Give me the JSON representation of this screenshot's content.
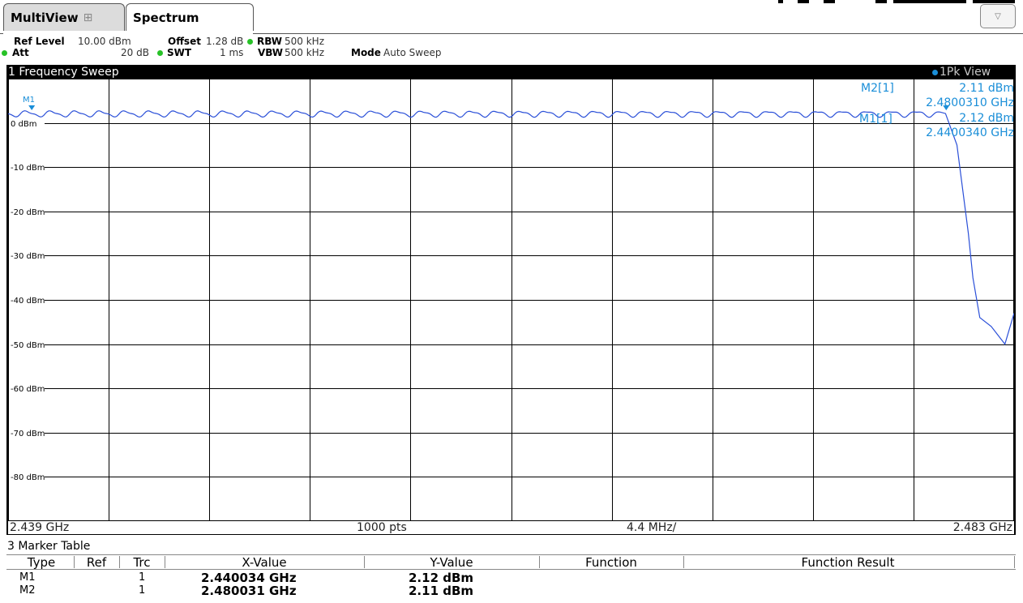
{
  "tabs": {
    "multiview_label": "MultiView",
    "multiview_icon": "grid-icon",
    "spectrum_label": "Spectrum",
    "dropdown_icon": "dropdown-arrow-icon"
  },
  "settings": {
    "ref_level_label": "Ref Level",
    "ref_level_value": "10.00 dBm",
    "offset_label": "Offset",
    "offset_value": "1.28 dB",
    "rbw_label": "RBW",
    "rbw_value": "500 kHz",
    "att_label": "Att",
    "att_value": "20 dB",
    "swt_label": "SWT",
    "swt_value": "1 ms",
    "vbw_label": "VBW",
    "vbw_value": "500 kHz",
    "mode_label": "Mode",
    "mode_value": "Auto Sweep",
    "indicator_color": "#27c227"
  },
  "window": {
    "title": "1 Frequency Sweep",
    "trace_view": "1Pk View",
    "trace_color": "#2a4fd8",
    "marker_color": "#1a8ed8"
  },
  "y_axis": {
    "labels": [
      "0 dBm",
      "-10 dBm",
      "-20 dBm",
      "-30 dBm",
      "-40 dBm",
      "-50 dBm",
      "-60 dBm",
      "-70 dBm",
      "-80 dBm"
    ]
  },
  "x_axis": {
    "start": "2.439 GHz",
    "points": "1000 pts",
    "span_per_div": "4.4 MHz/",
    "stop": "2.483 GHz"
  },
  "marker_annotations": {
    "m1_flag": "M1",
    "m2_label": "M2[1]",
    "m2_level": "2.11 dBm",
    "m2_freq": "2.4800310 GHz",
    "m1_label": "M1[1]",
    "m1_level": "2.12 dBm",
    "m1_freq": "2.4400340 GHz"
  },
  "chart_data": {
    "type": "line",
    "ylim": [
      -90,
      10
    ],
    "xlim": [
      2.439,
      2.483
    ],
    "x_unit": "GHz",
    "y_unit": "dBm",
    "grid": true,
    "series": [
      {
        "x": [
          2.439,
          2.44,
          2.445,
          2.45,
          2.455,
          2.46,
          2.465,
          2.47,
          2.475,
          2.4795,
          2.48,
          2.4805,
          2.481,
          2.4812,
          2.4815,
          2.482,
          2.4823,
          2.4826,
          2.483
        ],
        "y": [
          2.1,
          2.12,
          2.0,
          2.0,
          2.0,
          2.0,
          2.0,
          2.0,
          2.0,
          2.1,
          2.11,
          -5,
          -25,
          -35,
          -44,
          -46,
          -48,
          -50,
          -43
        ]
      }
    ],
    "markers": [
      {
        "name": "M1",
        "x": 2.440034,
        "y": 2.12
      },
      {
        "name": "M2",
        "x": 2.480031,
        "y": 2.11
      }
    ]
  },
  "marker_table": {
    "title": "3 Marker Table",
    "headers": [
      "Type",
      "Ref",
      "Trc",
      "X-Value",
      "Y-Value",
      "Function",
      "Function Result"
    ],
    "rows": [
      {
        "type": "M1",
        "ref": "",
        "trc": "1",
        "x_value": "2.440034 GHz",
        "y_value": "2.12 dBm",
        "function": "",
        "function_result": ""
      },
      {
        "type": "M2",
        "ref": "",
        "trc": "1",
        "x_value": "2.480031 GHz",
        "y_value": "2.11 dBm",
        "function": "",
        "function_result": ""
      }
    ]
  }
}
